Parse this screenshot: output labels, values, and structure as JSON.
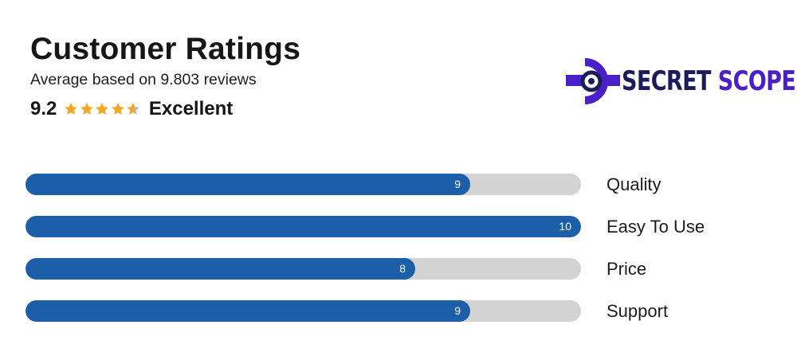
{
  "header": {
    "title": "Customer Ratings",
    "subtitle": "Average based on 9.803 reviews",
    "score": "9.2",
    "verdict": "Excellent",
    "stars": 4.6,
    "star_color": "#f5a623",
    "star_empty_color": "#b8b8b8"
  },
  "logo": {
    "word1": "SECRET",
    "word2": "SCOPE",
    "icon": "eye-scope-icon",
    "color_dark": "#1c1c5a",
    "color_accent": "#4a1fc8"
  },
  "ratings": {
    "max": 10,
    "bar_color": "#1c5ea8",
    "track_color": "#d3d3d3",
    "items": [
      {
        "label": "Quality",
        "value": 9,
        "display": "9"
      },
      {
        "label": "Easy To Use",
        "value": 10,
        "display": "10"
      },
      {
        "label": "Price",
        "value": 8,
        "display": "8"
      },
      {
        "label": "Support",
        "value": 9,
        "display": "9"
      }
    ]
  }
}
